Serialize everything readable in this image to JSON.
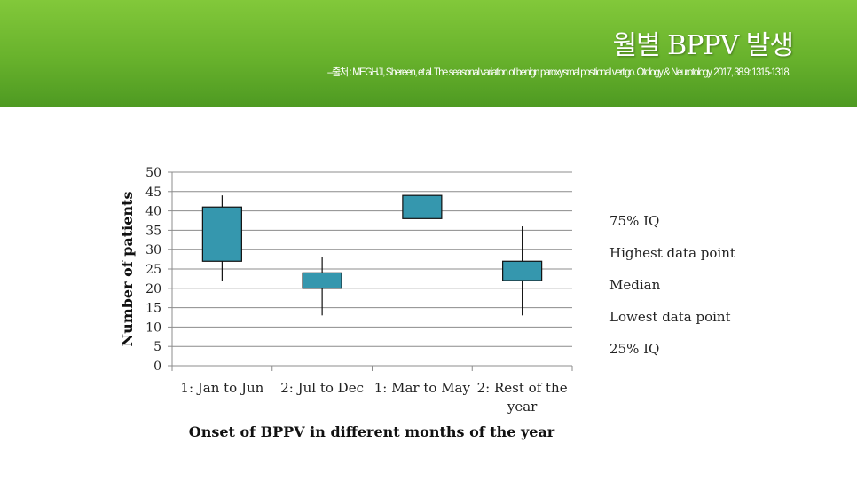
{
  "slide": {
    "title": "월별 BPPV 발생",
    "citation": "–출처 : MEGHJI, Shereen, et al. The seasonal variation of benign paroxysmal positional vertigo. Otology & Neurotology, 2017, 38.9: 1315-1318."
  },
  "colors": {
    "header_green": "#6cb52f",
    "box_fill": "#3597ae",
    "box_stroke": "#111111",
    "grid": "#8c8c8c"
  },
  "chart_data": {
    "type": "box",
    "title": "",
    "xlabel": "Onset of BPPV in different months of the year",
    "ylabel": "Number of patients",
    "ylim": [
      0,
      50
    ],
    "yticks": [
      0,
      5,
      10,
      15,
      20,
      25,
      30,
      35,
      40,
      45,
      50
    ],
    "grid": true,
    "categories": [
      [
        "1: Jan to Jun"
      ],
      [
        "2: Jul to Dec"
      ],
      [
        "1: Mar to May"
      ],
      [
        "2: Rest of the",
        "year"
      ]
    ],
    "boxes": [
      {
        "low": 22,
        "q1": 27,
        "q3": 41,
        "high": 44
      },
      {
        "low": 13,
        "q1": 20,
        "q3": 24,
        "high": 28
      },
      {
        "low": 38,
        "q1": 38,
        "q3": 44,
        "high": 44
      },
      {
        "low": 13,
        "q1": 22,
        "q3": 27,
        "high": 36
      }
    ],
    "legend_items": [
      "75% IQ",
      "Highest data point",
      "Median",
      "Lowest data point",
      "25% IQ"
    ],
    "legend_position": "right"
  }
}
